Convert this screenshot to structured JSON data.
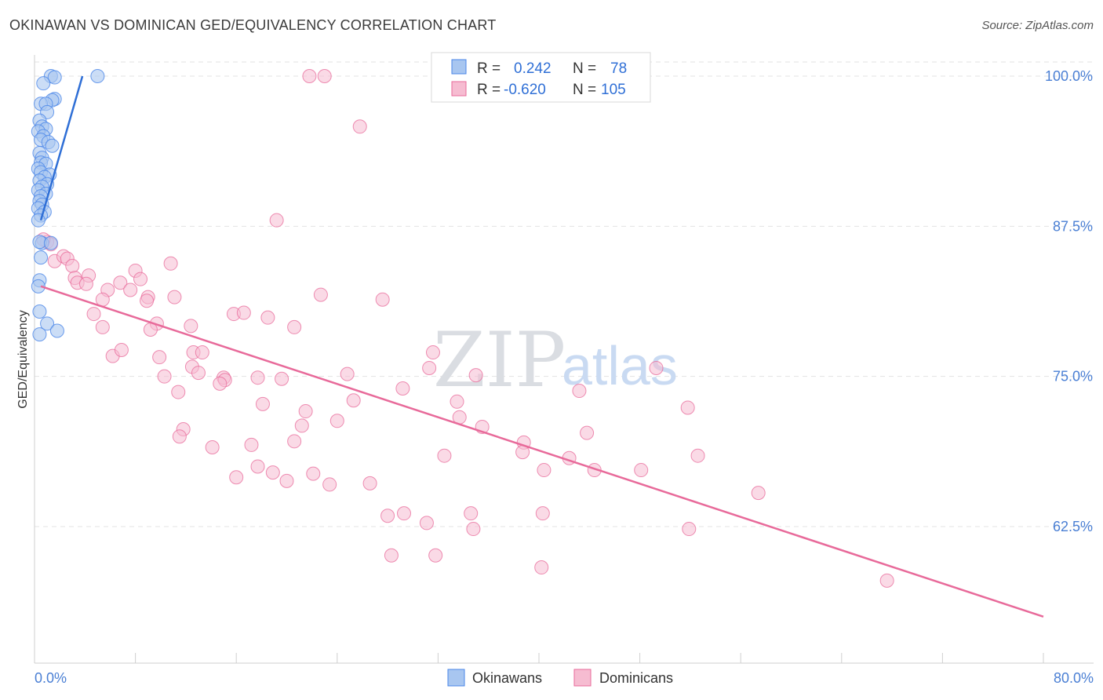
{
  "title": "OKINAWAN VS DOMINICAN GED/EQUIVALENCY CORRELATION CHART",
  "source": "Source: ZipAtlas.com",
  "watermark": {
    "zip": "ZIP",
    "atlas": "atlas"
  },
  "colors": {
    "okinawans": "#4a86e8",
    "okinawans_fill": "#a8c6f0",
    "dominicans": "#e86a9a",
    "dominicans_fill": "#f6bcd1",
    "axis_label": "#4a7fd4",
    "grid": "#e3e3e3"
  },
  "legend": {
    "rows": [
      {
        "r_label": "R =",
        "r_value": "0.242",
        "n_label": "N =",
        "n_value": "78"
      },
      {
        "r_label": "R =",
        "r_value": "-0.620",
        "n_label": "N =",
        "n_value": "105"
      }
    ]
  },
  "chart_data": {
    "type": "scatter",
    "title": "OKINAWAN VS DOMINICAN GED/EQUIVALENCY CORRELATION CHART",
    "xlabel": "",
    "ylabel": "GED/Equivalency",
    "xlim": [
      0,
      80
    ],
    "ylim": [
      50,
      101
    ],
    "x_tick_labels": [
      "0.0%",
      "80.0%"
    ],
    "y_ticks": [
      62.5,
      75.0,
      87.5,
      100.0
    ],
    "y_tick_labels": [
      "62.5%",
      "75.0%",
      "87.5%",
      "100.0%"
    ],
    "legend_position": "bottom",
    "series": [
      {
        "name": "Okinawans",
        "r": 0.242,
        "n": 78,
        "trend": {
          "x": [
            0.5,
            3.8
          ],
          "y": [
            88.0,
            100.0
          ]
        },
        "points": [
          [
            1.3,
            100.0
          ],
          [
            1.6,
            99.9
          ],
          [
            5.0,
            100.0
          ],
          [
            0.7,
            99.4
          ],
          [
            1.6,
            98.1
          ],
          [
            1.4,
            98.0
          ],
          [
            0.5,
            97.7
          ],
          [
            0.9,
            97.7
          ],
          [
            1.0,
            97.0
          ],
          [
            0.4,
            96.3
          ],
          [
            0.6,
            95.8
          ],
          [
            0.9,
            95.6
          ],
          [
            0.3,
            95.4
          ],
          [
            0.7,
            95.0
          ],
          [
            0.5,
            94.7
          ],
          [
            1.1,
            94.5
          ],
          [
            1.4,
            94.2
          ],
          [
            0.4,
            93.6
          ],
          [
            0.6,
            93.2
          ],
          [
            0.5,
            92.8
          ],
          [
            0.9,
            92.7
          ],
          [
            0.3,
            92.3
          ],
          [
            0.5,
            92.0
          ],
          [
            1.2,
            91.8
          ],
          [
            0.8,
            91.6
          ],
          [
            0.4,
            91.3
          ],
          [
            1.0,
            91.0
          ],
          [
            0.6,
            90.8
          ],
          [
            0.3,
            90.5
          ],
          [
            0.9,
            90.2
          ],
          [
            0.5,
            90.0
          ],
          [
            0.4,
            89.6
          ],
          [
            0.6,
            89.3
          ],
          [
            0.3,
            89.0
          ],
          [
            0.8,
            88.7
          ],
          [
            0.5,
            88.4
          ],
          [
            0.3,
            88.0
          ],
          [
            0.6,
            86.1
          ],
          [
            0.4,
            86.2
          ],
          [
            1.3,
            86.1
          ],
          [
            0.5,
            84.9
          ],
          [
            0.4,
            83.0
          ],
          [
            0.3,
            82.5
          ],
          [
            0.4,
            80.4
          ],
          [
            1.0,
            79.4
          ],
          [
            1.8,
            78.8
          ],
          [
            0.4,
            78.5
          ]
        ]
      },
      {
        "name": "Dominicans",
        "r": -0.62,
        "n": 105,
        "trend": {
          "x": [
            0.5,
            80.0
          ],
          "y": [
            82.5,
            55.0
          ]
        },
        "points": [
          [
            21.8,
            100.0
          ],
          [
            23.0,
            100.0
          ],
          [
            25.8,
            95.8
          ],
          [
            19.2,
            88.0
          ],
          [
            1.0,
            86.2
          ],
          [
            1.3,
            86.0
          ],
          [
            0.7,
            86.4
          ],
          [
            1.6,
            84.6
          ],
          [
            2.3,
            85.0
          ],
          [
            2.6,
            84.8
          ],
          [
            3.0,
            84.2
          ],
          [
            3.2,
            83.2
          ],
          [
            4.3,
            83.4
          ],
          [
            3.4,
            82.8
          ],
          [
            4.1,
            82.7
          ],
          [
            6.8,
            82.8
          ],
          [
            8.0,
            83.8
          ],
          [
            8.4,
            83.1
          ],
          [
            10.8,
            84.4
          ],
          [
            5.8,
            82.2
          ],
          [
            7.6,
            82.2
          ],
          [
            9.0,
            81.6
          ],
          [
            5.4,
            81.4
          ],
          [
            8.9,
            81.3
          ],
          [
            11.1,
            81.6
          ],
          [
            22.7,
            81.8
          ],
          [
            27.6,
            81.4
          ],
          [
            4.7,
            80.2
          ],
          [
            15.8,
            80.2
          ],
          [
            16.6,
            80.3
          ],
          [
            18.5,
            79.9
          ],
          [
            9.7,
            79.4
          ],
          [
            5.4,
            79.1
          ],
          [
            12.4,
            79.2
          ],
          [
            20.6,
            79.1
          ],
          [
            9.2,
            78.9
          ],
          [
            6.2,
            76.7
          ],
          [
            6.9,
            77.2
          ],
          [
            9.9,
            76.6
          ],
          [
            12.6,
            77.0
          ],
          [
            13.3,
            77.0
          ],
          [
            31.6,
            77.0
          ],
          [
            12.5,
            75.8
          ],
          [
            13.0,
            75.3
          ],
          [
            31.3,
            75.7
          ],
          [
            35.0,
            75.1
          ],
          [
            49.3,
            75.7
          ],
          [
            10.3,
            75.0
          ],
          [
            15.0,
            74.9
          ],
          [
            15.1,
            74.7
          ],
          [
            17.7,
            74.9
          ],
          [
            19.6,
            74.8
          ],
          [
            24.8,
            75.2
          ],
          [
            14.7,
            74.4
          ],
          [
            11.4,
            73.7
          ],
          [
            29.2,
            74.0
          ],
          [
            43.2,
            73.8
          ],
          [
            25.3,
            73.0
          ],
          [
            18.1,
            72.7
          ],
          [
            33.5,
            72.9
          ],
          [
            51.8,
            72.4
          ],
          [
            21.5,
            72.1
          ],
          [
            33.7,
            71.6
          ],
          [
            24.0,
            71.3
          ],
          [
            21.2,
            70.9
          ],
          [
            35.5,
            70.8
          ],
          [
            11.8,
            70.6
          ],
          [
            43.8,
            70.3
          ],
          [
            11.5,
            70.0
          ],
          [
            20.6,
            69.6
          ],
          [
            17.2,
            69.3
          ],
          [
            38.8,
            69.5
          ],
          [
            14.1,
            69.1
          ],
          [
            32.5,
            68.4
          ],
          [
            38.7,
            68.7
          ],
          [
            42.4,
            68.2
          ],
          [
            52.6,
            68.4
          ],
          [
            17.7,
            67.5
          ],
          [
            40.4,
            67.2
          ],
          [
            44.4,
            67.2
          ],
          [
            48.1,
            67.2
          ],
          [
            18.9,
            67.0
          ],
          [
            22.1,
            66.9
          ],
          [
            16.0,
            66.6
          ],
          [
            20.0,
            66.3
          ],
          [
            23.4,
            66.0
          ],
          [
            26.6,
            66.1
          ],
          [
            57.4,
            65.3
          ],
          [
            29.3,
            63.6
          ],
          [
            28.0,
            63.4
          ],
          [
            34.6,
            63.6
          ],
          [
            40.3,
            63.6
          ],
          [
            31.1,
            62.8
          ],
          [
            34.8,
            62.3
          ],
          [
            51.9,
            62.3
          ],
          [
            28.3,
            60.1
          ],
          [
            31.8,
            60.1
          ],
          [
            40.2,
            59.1
          ],
          [
            67.6,
            58.0
          ]
        ]
      }
    ]
  },
  "bottom_legend": {
    "okinawans": "Okinawans",
    "dominicans": "Dominicans"
  }
}
